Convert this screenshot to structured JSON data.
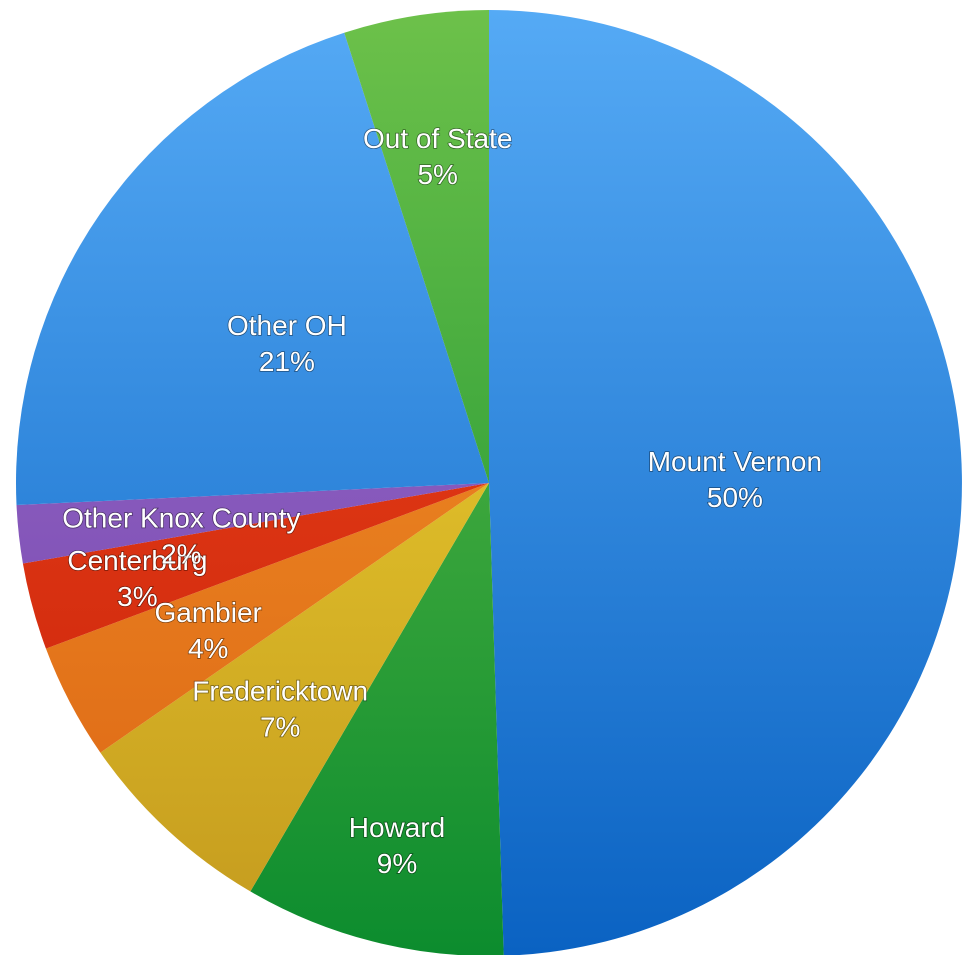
{
  "chart_data": {
    "type": "pie",
    "title": "",
    "slices": [
      {
        "label": "Mount Vernon",
        "value": 50,
        "value_label": "50%",
        "color_light": "#55aaf5",
        "color_dark": "#0a62c2"
      },
      {
        "label": "Howard",
        "value": 9,
        "value_label": "9%",
        "color_light": "#6dc14a",
        "color_dark": "#0c8c2e"
      },
      {
        "label": "Fredericktown",
        "value": 7,
        "value_label": "7%",
        "color_light": "#f6dd33",
        "color_dark": "#c49a1e"
      },
      {
        "label": "Gambier",
        "value": 4,
        "value_label": "4%",
        "color_light": "#f49a2a",
        "color_dark": "#dc6414"
      },
      {
        "label": "Centerburg",
        "value": 3,
        "value_label": "3%",
        "color_light": "#f04a1c",
        "color_dark": "#c8200a"
      },
      {
        "label": "Other Knox County",
        "value": 2,
        "value_label": "2%",
        "color_light": "#a074d0",
        "color_dark": "#6f3fa8"
      },
      {
        "label": "Other OH",
        "value": 21,
        "value_label": "21%",
        "color_light": "#55aaf5",
        "color_dark": "#0a62c2"
      },
      {
        "label": "Out of State",
        "value": 5,
        "value_label": "5%",
        "color_light": "#6dc14a",
        "color_dark": "#0c8c2e"
      }
    ]
  }
}
